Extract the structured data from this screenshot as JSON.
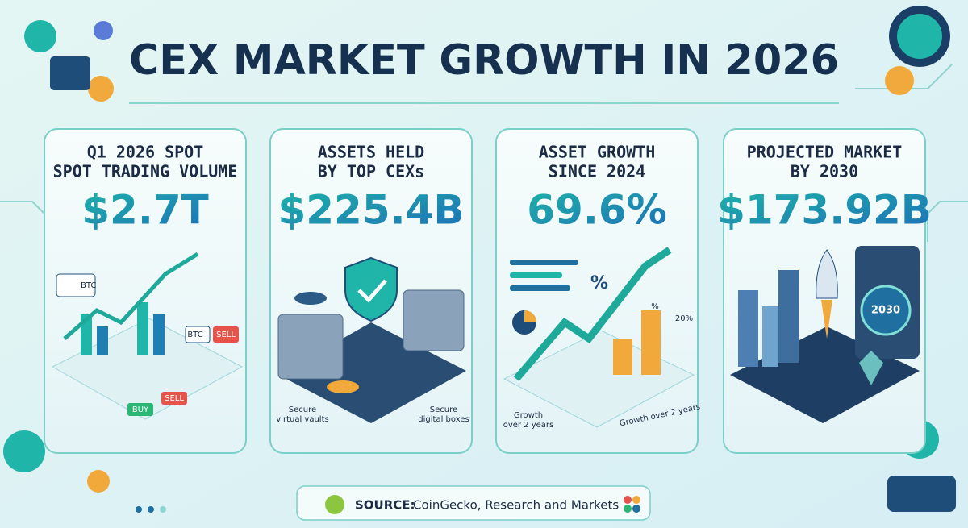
{
  "header": {
    "title": "CEX MARKET GROWTH IN 2026"
  },
  "cards": [
    {
      "heading": [
        "Q1 2026 SPOT",
        "SPOT TRADING VOLUME"
      ],
      "value": "$2.7T",
      "labels": [
        "BTC",
        "BTC",
        "SELL",
        "BUY",
        "SELL"
      ]
    },
    {
      "heading": [
        "ASSETS HELD",
        "BY TOP CEXs"
      ],
      "value": "$225.4B",
      "labels": [
        "Secure",
        "virtual vaults",
        "Secure",
        "digital boxes"
      ]
    },
    {
      "heading": [
        "ASSET GROWTH",
        "SINCE 2024"
      ],
      "value": "69.6%",
      "labels": [
        "%",
        "%",
        "20%",
        "Growth",
        "over 2 years",
        "Growth over 2 years"
      ]
    },
    {
      "heading": [
        "PROJECTED MARKET",
        "BY 2030"
      ],
      "value": "$173.92B",
      "labels": [
        "2030"
      ]
    }
  ],
  "footer": {
    "source_label": "SOURCE:",
    "source_text": "CoinGecko, Research and Markets"
  }
}
